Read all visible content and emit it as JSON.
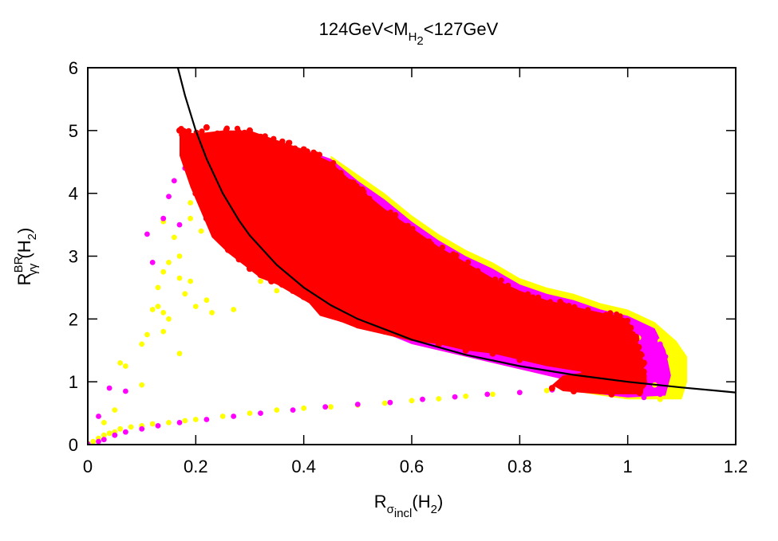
{
  "chart_data": {
    "type": "scatter",
    "title": {
      "prefix": "124GeV<M",
      "sub": "H",
      "subsub": "2",
      "suffix": "<127GeV"
    },
    "xlabel": {
      "main": "R",
      "sub": "σ",
      "subsub": "incl",
      "suffix": "(H",
      "suffix_sub": "2",
      "close": ")"
    },
    "ylabel": {
      "main": "R",
      "sup": "BR",
      "sub": "γγ",
      "suffix": "(H",
      "suffix_sub": "2",
      "close": ")"
    },
    "xlim": [
      0,
      1.2
    ],
    "ylim": [
      0,
      6
    ],
    "xticks": [
      "0",
      "0.2",
      "0.4",
      "0.6",
      "0.8",
      "1",
      "1.2"
    ],
    "yticks": [
      "0",
      "1",
      "2",
      "3",
      "4",
      "5",
      "6"
    ],
    "grid": false,
    "colors": {
      "yellow": "#ffff00",
      "magenta": "#ff00ff",
      "red": "#ff0000",
      "curve": "#000000"
    },
    "series": [
      {
        "name": "yellow points",
        "color": "#ffff00",
        "points": [
          [
            0.0,
            0.02
          ],
          [
            0.01,
            0.05
          ],
          [
            0.02,
            0.1
          ],
          [
            0.03,
            0.15
          ],
          [
            0.04,
            0.18
          ],
          [
            0.05,
            0.2
          ],
          [
            0.06,
            0.25
          ],
          [
            0.08,
            0.28
          ],
          [
            0.1,
            0.3
          ],
          [
            0.12,
            0.33
          ],
          [
            0.15,
            0.35
          ],
          [
            0.18,
            0.38
          ],
          [
            0.2,
            0.4
          ],
          [
            0.25,
            0.45
          ],
          [
            0.3,
            0.5
          ],
          [
            0.35,
            0.55
          ],
          [
            0.4,
            0.58
          ],
          [
            0.45,
            0.6
          ],
          [
            0.5,
            0.63
          ],
          [
            0.55,
            0.66
          ],
          [
            0.6,
            0.7
          ],
          [
            0.65,
            0.73
          ],
          [
            0.7,
            0.77
          ],
          [
            0.75,
            0.8
          ],
          [
            0.8,
            0.83
          ],
          [
            0.85,
            0.86
          ],
          [
            0.9,
            0.88
          ],
          [
            0.95,
            0.9
          ],
          [
            1.0,
            0.93
          ],
          [
            1.05,
            0.95
          ],
          [
            1.1,
            0.92
          ],
          [
            0.03,
            0.35
          ],
          [
            0.05,
            0.55
          ],
          [
            0.06,
            1.3
          ],
          [
            0.07,
            1.25
          ],
          [
            0.1,
            0.95
          ],
          [
            0.1,
            1.6
          ],
          [
            0.11,
            1.75
          ],
          [
            0.12,
            2.15
          ],
          [
            0.13,
            2.2
          ],
          [
            0.13,
            2.5
          ],
          [
            0.14,
            1.8
          ],
          [
            0.14,
            2.1
          ],
          [
            0.14,
            2.75
          ],
          [
            0.15,
            2.0
          ],
          [
            0.15,
            2.9
          ],
          [
            0.16,
            3.3
          ],
          [
            0.17,
            3.0
          ],
          [
            0.17,
            2.65
          ],
          [
            0.17,
            1.45
          ],
          [
            0.18,
            2.4
          ],
          [
            0.19,
            2.6
          ],
          [
            0.2,
            2.2
          ],
          [
            0.21,
            3.4
          ],
          [
            0.22,
            2.3
          ],
          [
            0.23,
            2.1
          ],
          [
            0.27,
            2.15
          ],
          [
            0.14,
            3.55
          ],
          [
            0.19,
            3.85
          ],
          [
            0.19,
            3.6
          ],
          [
            0.32,
            2.6
          ],
          [
            0.35,
            2.45
          ],
          [
            0.62,
            3.0
          ],
          [
            0.7,
            2.7
          ],
          [
            0.75,
            2.55
          ],
          [
            0.82,
            2.3
          ],
          [
            0.9,
            2.05
          ],
          [
            0.97,
            1.85
          ],
          [
            1.02,
            1.7
          ],
          [
            1.06,
            1.65
          ],
          [
            1.08,
            1.55
          ],
          [
            1.1,
            1.45
          ],
          [
            1.1,
            1.2
          ],
          [
            1.1,
            1.0
          ],
          [
            1.09,
            0.78
          ],
          [
            1.06,
            0.72
          ]
        ]
      },
      {
        "name": "magenta points",
        "color": "#ff00ff",
        "points": [
          [
            0.0,
            0.01
          ],
          [
            0.02,
            0.05
          ],
          [
            0.03,
            0.08
          ],
          [
            0.05,
            0.15
          ],
          [
            0.07,
            0.2
          ],
          [
            0.1,
            0.25
          ],
          [
            0.13,
            0.3
          ],
          [
            0.17,
            0.35
          ],
          [
            0.22,
            0.4
          ],
          [
            0.27,
            0.45
          ],
          [
            0.32,
            0.5
          ],
          [
            0.38,
            0.55
          ],
          [
            0.44,
            0.6
          ],
          [
            0.5,
            0.64
          ],
          [
            0.56,
            0.67
          ],
          [
            0.62,
            0.72
          ],
          [
            0.68,
            0.76
          ],
          [
            0.74,
            0.8
          ],
          [
            0.8,
            0.83
          ],
          [
            0.86,
            0.87
          ],
          [
            0.92,
            0.9
          ],
          [
            0.98,
            0.92
          ],
          [
            1.04,
            0.95
          ],
          [
            0.02,
            0.45
          ],
          [
            0.04,
            0.9
          ],
          [
            0.07,
            0.85
          ],
          [
            0.11,
            3.35
          ],
          [
            0.12,
            2.9
          ],
          [
            0.14,
            3.6
          ],
          [
            0.15,
            3.95
          ],
          [
            0.16,
            4.2
          ],
          [
            0.17,
            3.5
          ],
          [
            0.18,
            4.4
          ],
          [
            0.55,
            3.05
          ],
          [
            0.6,
            2.95
          ],
          [
            0.68,
            2.75
          ],
          [
            0.73,
            2.65
          ],
          [
            0.8,
            2.4
          ],
          [
            0.87,
            2.15
          ],
          [
            0.93,
            2.0
          ],
          [
            0.99,
            1.85
          ],
          [
            1.03,
            1.75
          ],
          [
            1.06,
            1.6
          ],
          [
            1.07,
            1.4
          ],
          [
            1.07,
            1.15
          ],
          [
            1.07,
            0.95
          ],
          [
            1.06,
            0.8
          ],
          [
            1.03,
            0.75
          ]
        ]
      },
      {
        "name": "red points",
        "color": "#ff0000",
        "points": [
          [
            0.17,
            5.0
          ],
          [
            0.18,
            4.95
          ],
          [
            0.2,
            4.9
          ],
          [
            0.22,
            5.05
          ],
          [
            0.24,
            4.95
          ],
          [
            0.26,
            4.9
          ],
          [
            0.28,
            4.95
          ],
          [
            0.3,
            5.0
          ],
          [
            0.32,
            4.9
          ],
          [
            0.34,
            4.8
          ],
          [
            0.36,
            4.75
          ],
          [
            0.38,
            4.7
          ],
          [
            0.4,
            4.7
          ],
          [
            0.42,
            4.55
          ],
          [
            0.44,
            4.35
          ],
          [
            0.46,
            4.15
          ],
          [
            0.48,
            4.0
          ],
          [
            0.5,
            3.85
          ],
          [
            0.53,
            3.7
          ],
          [
            0.56,
            3.45
          ],
          [
            0.6,
            3.35
          ],
          [
            0.64,
            3.05
          ],
          [
            0.68,
            2.85
          ],
          [
            0.72,
            2.7
          ],
          [
            0.76,
            2.5
          ],
          [
            0.8,
            2.35
          ],
          [
            0.84,
            2.25
          ],
          [
            0.88,
            2.15
          ],
          [
            0.92,
            2.05
          ],
          [
            0.96,
            1.95
          ],
          [
            1.0,
            1.75
          ],
          [
            1.02,
            1.55
          ],
          [
            1.03,
            1.3
          ],
          [
            1.03,
            1.0
          ],
          [
            1.02,
            0.85
          ],
          [
            0.97,
            0.8
          ],
          [
            0.9,
            0.85
          ],
          [
            0.86,
            0.9
          ],
          [
            0.9,
            1.0
          ],
          [
            0.92,
            1.15
          ],
          [
            0.85,
            1.3
          ],
          [
            0.8,
            1.35
          ],
          [
            0.75,
            1.45
          ],
          [
            0.7,
            1.5
          ],
          [
            0.65,
            1.6
          ],
          [
            0.6,
            1.7
          ],
          [
            0.55,
            1.8
          ],
          [
            0.5,
            1.9
          ],
          [
            0.47,
            2.0
          ],
          [
            0.44,
            2.1
          ],
          [
            0.42,
            2.3
          ],
          [
            0.4,
            2.35
          ],
          [
            0.38,
            2.45
          ],
          [
            0.36,
            2.55
          ],
          [
            0.34,
            2.6
          ],
          [
            0.32,
            2.7
          ],
          [
            0.3,
            2.8
          ],
          [
            0.28,
            2.95
          ],
          [
            0.26,
            3.1
          ],
          [
            0.24,
            3.3
          ],
          [
            0.22,
            3.6
          ],
          [
            0.2,
            4.0
          ],
          [
            0.18,
            4.6
          ]
        ]
      },
      {
        "name": "theory curve",
        "type": "line",
        "color": "#000000",
        "formula_constant": 1.0,
        "x": [
          0.165,
          0.18,
          0.2,
          0.22,
          0.25,
          0.28,
          0.3,
          0.35,
          0.4,
          0.45,
          0.5,
          0.6,
          0.7,
          0.8,
          0.9,
          1.0,
          1.1,
          1.2
        ],
        "y": [
          6.06,
          5.56,
          5.0,
          4.55,
          4.0,
          3.57,
          3.33,
          2.86,
          2.5,
          2.22,
          2.0,
          1.67,
          1.43,
          1.25,
          1.11,
          1.0,
          0.91,
          0.83
        ]
      }
    ],
    "red_band": {
      "color": "#ff0000",
      "upper": [
        [
          0.17,
          5.0
        ],
        [
          0.2,
          4.95
        ],
        [
          0.25,
          5.0
        ],
        [
          0.3,
          5.0
        ],
        [
          0.35,
          4.85
        ],
        [
          0.4,
          4.7
        ],
        [
          0.45,
          4.5
        ],
        [
          0.5,
          4.1
        ],
        [
          0.55,
          3.75
        ],
        [
          0.6,
          3.45
        ],
        [
          0.65,
          3.15
        ],
        [
          0.7,
          2.9
        ],
        [
          0.75,
          2.65
        ],
        [
          0.8,
          2.45
        ],
        [
          0.85,
          2.3
        ],
        [
          0.9,
          2.2
        ],
        [
          0.95,
          2.1
        ],
        [
          1.0,
          2.0
        ],
        [
          1.02,
          1.6
        ],
        [
          1.03,
          1.3
        ],
        [
          1.03,
          1.0
        ],
        [
          1.02,
          0.8
        ]
      ],
      "lower": [
        [
          1.0,
          0.8
        ],
        [
          0.95,
          0.8
        ],
        [
          0.88,
          0.85
        ],
        [
          0.86,
          0.95
        ],
        [
          0.88,
          1.1
        ],
        [
          0.92,
          1.15
        ],
        [
          0.85,
          1.25
        ],
        [
          0.8,
          1.35
        ],
        [
          0.75,
          1.45
        ],
        [
          0.7,
          1.5
        ],
        [
          0.65,
          1.6
        ],
        [
          0.6,
          1.65
        ],
        [
          0.55,
          1.75
        ],
        [
          0.5,
          1.85
        ],
        [
          0.47,
          1.95
        ],
        [
          0.43,
          2.05
        ],
        [
          0.41,
          2.25
        ],
        [
          0.38,
          2.4
        ],
        [
          0.35,
          2.55
        ],
        [
          0.32,
          2.65
        ],
        [
          0.29,
          2.85
        ],
        [
          0.26,
          3.05
        ],
        [
          0.23,
          3.3
        ],
        [
          0.21,
          3.7
        ],
        [
          0.19,
          4.1
        ],
        [
          0.17,
          4.6
        ]
      ]
    },
    "magenta_band": {
      "color": "#ff00ff",
      "upper": [
        [
          0.35,
          4.8
        ],
        [
          0.4,
          4.7
        ],
        [
          0.45,
          4.55
        ],
        [
          0.5,
          4.2
        ],
        [
          0.55,
          3.9
        ],
        [
          0.6,
          3.55
        ],
        [
          0.65,
          3.25
        ],
        [
          0.7,
          3.0
        ],
        [
          0.75,
          2.8
        ],
        [
          0.8,
          2.55
        ],
        [
          0.85,
          2.4
        ],
        [
          0.9,
          2.3
        ],
        [
          0.95,
          2.15
        ],
        [
          1.0,
          2.05
        ],
        [
          1.05,
          1.85
        ],
        [
          1.07,
          1.5
        ],
        [
          1.08,
          1.1
        ],
        [
          1.07,
          0.78
        ]
      ],
      "lower": [
        [
          1.0,
          0.75
        ],
        [
          0.95,
          0.8
        ],
        [
          0.9,
          0.85
        ],
        [
          0.9,
          1.0
        ],
        [
          0.6,
          1.6
        ],
        [
          0.4,
          2.3
        ]
      ]
    },
    "yellow_band": {
      "color": "#ffff00",
      "upper": [
        [
          0.45,
          4.6
        ],
        [
          0.5,
          4.3
        ],
        [
          0.55,
          4.0
        ],
        [
          0.6,
          3.65
        ],
        [
          0.65,
          3.35
        ],
        [
          0.7,
          3.1
        ],
        [
          0.75,
          2.9
        ],
        [
          0.8,
          2.65
        ],
        [
          0.85,
          2.5
        ],
        [
          0.9,
          2.4
        ],
        [
          0.95,
          2.25
        ],
        [
          1.0,
          2.15
        ],
        [
          1.05,
          1.95
        ],
        [
          1.09,
          1.65
        ],
        [
          1.11,
          1.4
        ],
        [
          1.11,
          1.0
        ],
        [
          1.1,
          0.72
        ]
      ],
      "lower": [
        [
          1.0,
          0.72
        ],
        [
          0.95,
          0.78
        ],
        [
          0.9,
          0.85
        ],
        [
          0.9,
          1.0
        ],
        [
          0.6,
          1.6
        ],
        [
          0.45,
          2.2
        ]
      ]
    }
  }
}
